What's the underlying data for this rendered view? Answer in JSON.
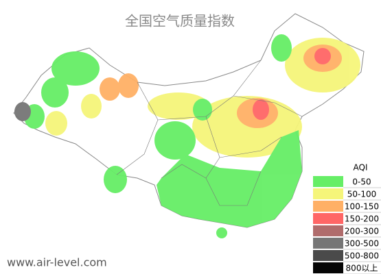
{
  "header": {
    "title": "全国空气质量指数"
  },
  "legend": {
    "title": "AQI",
    "items": [
      {
        "label": "0-50",
        "color": "#66ee66"
      },
      {
        "label": "50-100",
        "color": "#f5f57a"
      },
      {
        "label": "100-150",
        "color": "#ffb066"
      },
      {
        "label": "150-200",
        "color": "#ff6666"
      },
      {
        "label": "200-300",
        "color": "#b06c6c"
      },
      {
        "label": "300-500",
        "color": "#767676"
      },
      {
        "label": "500-800",
        "color": "#4a4a4a"
      },
      {
        "label": "800以上",
        "color": "#050505"
      }
    ]
  },
  "footer": {
    "text": "www.air-level.com"
  }
}
